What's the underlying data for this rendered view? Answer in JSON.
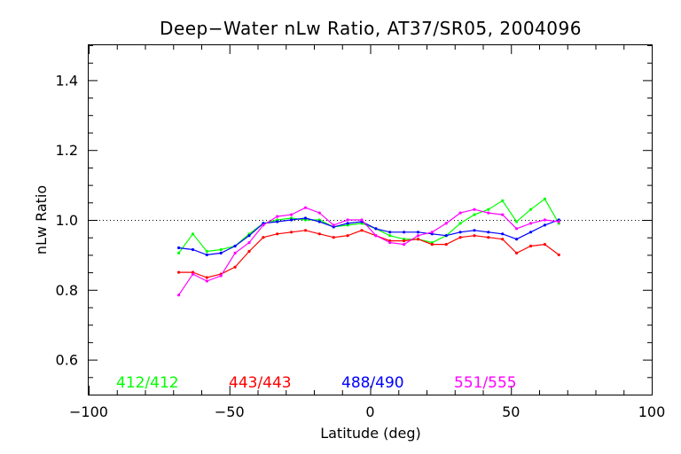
{
  "chart_data": {
    "type": "line",
    "title": "Deep−Water nLw Ratio, AT37/SR05, 2004096",
    "xlabel": "Latitude (deg)",
    "ylabel": "nLw Ratio",
    "xlim": [
      -100,
      100
    ],
    "ylim": [
      0.5,
      1.5
    ],
    "xticks": [
      -100,
      -50,
      0,
      50,
      100
    ],
    "xtick_labels": [
      "−100",
      "−50",
      "0",
      "50",
      "100"
    ],
    "yticks": [
      0.6,
      0.8,
      1.0,
      1.2,
      1.4
    ],
    "ytick_labels": [
      "0.6",
      "0.8",
      "1.0",
      "1.2",
      "1.4"
    ],
    "reference_line": 1.0,
    "legend_position": "bottom",
    "x": [
      -68,
      -63,
      -58,
      -53,
      -48,
      -43,
      -38,
      -33,
      -28,
      -23,
      -18,
      -13,
      -8,
      -3,
      2,
      7,
      12,
      17,
      22,
      27,
      32,
      37,
      42,
      47,
      52,
      57,
      62,
      67
    ],
    "series": [
      {
        "name": "412/412",
        "color": "#00ff00",
        "values": [
          0.905,
          0.96,
          0.91,
          0.915,
          0.925,
          0.96,
          0.99,
          1.0,
          1.005,
          1.0,
          1.0,
          0.98,
          0.985,
          0.99,
          0.975,
          0.955,
          0.945,
          0.945,
          0.935,
          0.955,
          0.99,
          1.015,
          1.03,
          1.055,
          0.995,
          1.03,
          1.06,
          0.99
        ]
      },
      {
        "name": "443/443",
        "color": "#ff0000",
        "values": [
          0.85,
          0.85,
          0.835,
          0.845,
          0.865,
          0.91,
          0.95,
          0.96,
          0.965,
          0.97,
          0.96,
          0.95,
          0.955,
          0.97,
          0.955,
          0.94,
          0.94,
          0.945,
          0.93,
          0.93,
          0.95,
          0.955,
          0.95,
          0.945,
          0.905,
          0.925,
          0.93,
          0.9
        ]
      },
      {
        "name": "488/490",
        "color": "#0000ff",
        "values": [
          0.92,
          0.915,
          0.9,
          0.905,
          0.925,
          0.955,
          0.99,
          0.995,
          1.0,
          1.005,
          0.995,
          0.98,
          0.99,
          0.995,
          0.975,
          0.965,
          0.965,
          0.965,
          0.96,
          0.955,
          0.965,
          0.97,
          0.965,
          0.96,
          0.945,
          0.965,
          0.985,
          1.0
        ]
      },
      {
        "name": "551/555",
        "color": "#ff00ff",
        "values": [
          0.785,
          0.845,
          0.825,
          0.84,
          0.905,
          0.935,
          0.985,
          1.01,
          1.015,
          1.035,
          1.02,
          0.985,
          1.0,
          1.0,
          0.955,
          0.935,
          0.93,
          0.955,
          0.965,
          0.99,
          1.02,
          1.03,
          1.02,
          1.015,
          0.975,
          0.99,
          1.0,
          0.995
        ]
      }
    ]
  }
}
